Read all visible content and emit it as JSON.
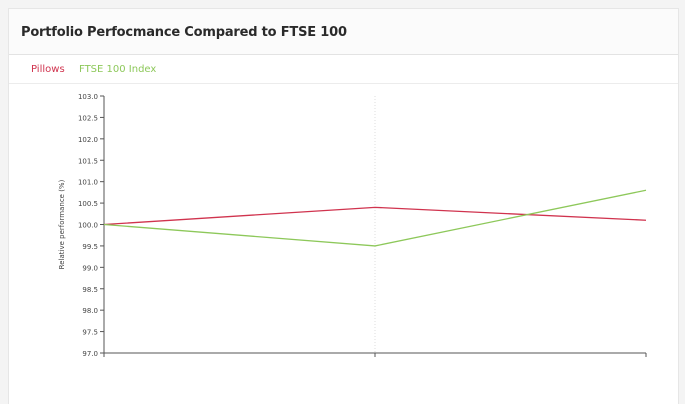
{
  "page": {
    "title": "Portfolio Perfocmance Compared to FTSE 100"
  },
  "colors": {
    "portfolio": "#d0334e",
    "ftse": "#8dc85a",
    "axis": "#555555",
    "grid": "#dcdcdc"
  },
  "chart_data": {
    "type": "line",
    "title": "Portfolio Perfocmance Compared to FTSE 100",
    "ylabel": "Relative performance (%)",
    "xlabel": "",
    "ylim": [
      97.0,
      103.0
    ],
    "y_ticks": [
      "103.0",
      "102.5",
      "102.0",
      "101.5",
      "101.0",
      "100.5",
      "100.0",
      "99.5",
      "99.0",
      "98.5",
      "98.0",
      "97.5",
      "97.0"
    ],
    "categories": [
      "",
      "",
      ""
    ],
    "grid": "vertical dotted at middle category",
    "legend_position": "top-left",
    "series": [
      {
        "name": "Pillows",
        "color": "#d0334e",
        "values": [
          100.0,
          100.4,
          100.1
        ]
      },
      {
        "name": "FTSE 100 Index",
        "color": "#8dc85a",
        "values": [
          100.0,
          99.5,
          100.8
        ]
      }
    ]
  }
}
